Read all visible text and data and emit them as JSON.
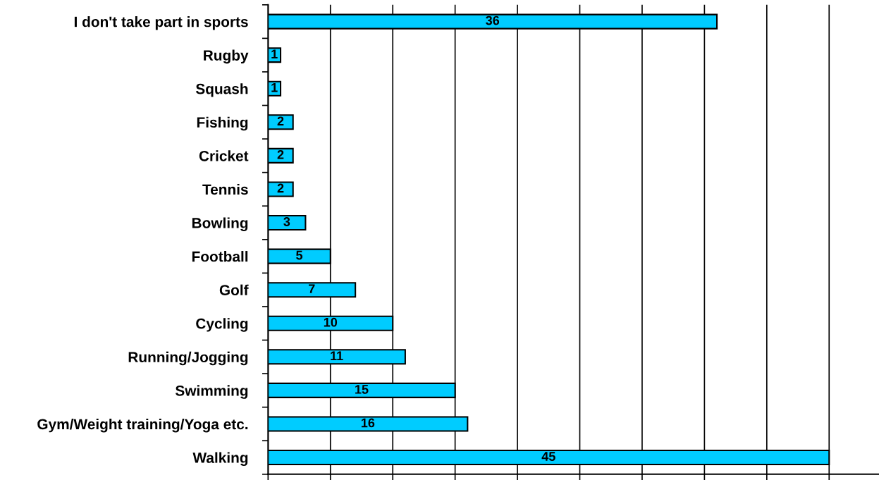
{
  "chart_data": {
    "type": "bar",
    "orientation": "horizontal",
    "categories": [
      "I don't take part in sports",
      "Rugby",
      "Squash",
      "Fishing",
      "Cricket",
      "Tennis",
      "Bowling",
      "Football",
      "Golf",
      "Cycling",
      "Running/Jogging",
      "Swimming",
      "Gym/Weight training/Yoga etc.",
      "Walking"
    ],
    "values": [
      36,
      1,
      1,
      2,
      2,
      2,
      3,
      5,
      7,
      10,
      11,
      15,
      16,
      45
    ],
    "color": "#00ccff",
    "data_labels": true,
    "grid": "x",
    "tick_labels": "y",
    "xlim": [
      0,
      49
    ],
    "xticks": [
      {
        "value": 0,
        "label": null
      },
      {
        "value": 5,
        "label": null
      },
      {
        "value": 10,
        "label": null
      },
      {
        "value": 15,
        "label": null
      },
      {
        "value": 20,
        "label": null
      },
      {
        "value": 25,
        "label": null
      },
      {
        "value": 30,
        "label": null
      },
      {
        "value": 35,
        "label": null
      },
      {
        "value": 40,
        "label": null
      },
      {
        "value": 45,
        "label": null
      }
    ]
  }
}
